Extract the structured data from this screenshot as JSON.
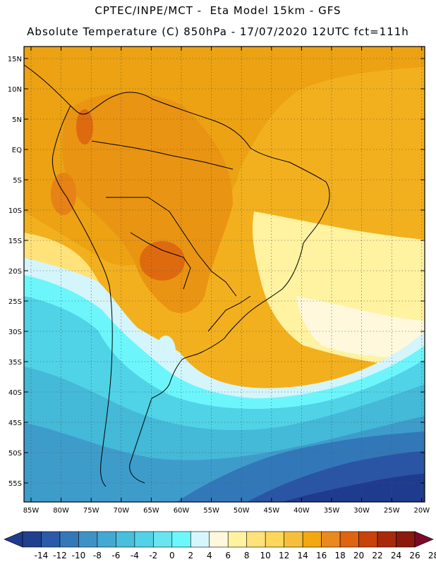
{
  "header": {
    "line1": "CPTEC/INPE/MCT -  Eta Model 15km - GFS",
    "line2": "Absolute Temperature (C) 850hPa - 17/07/2020 12UTC fct=111h"
  },
  "axes": {
    "lat_labels": [
      "15N",
      "10N",
      "5N",
      "EQ",
      "5S",
      "10S",
      "15S",
      "20S",
      "25S",
      "30S",
      "35S",
      "40S",
      "45S",
      "50S",
      "55S"
    ],
    "lon_labels": [
      "85W",
      "80W",
      "75W",
      "70W",
      "65W",
      "60W",
      "55W",
      "50W",
      "45W",
      "40W",
      "35W",
      "30W",
      "25W",
      "20W"
    ]
  },
  "colorbar": {
    "labels": [
      "-14",
      "-12",
      "-10",
      "-8",
      "-6",
      "-4",
      "-2",
      "0",
      "2",
      "4",
      "6",
      "8",
      "10",
      "12",
      "14",
      "16",
      "18",
      "20",
      "22",
      "24",
      "26",
      "28"
    ],
    "colors": [
      "#1f3f8f",
      "#2a5aa8",
      "#3478b8",
      "#3f92c6",
      "#43a9d2",
      "#48bfdb",
      "#52d2e6",
      "#6ae4f0",
      "#6cf8fb",
      "#d7f6fb",
      "#fff8dc",
      "#fff3a0",
      "#ffe27a",
      "#ffd65c",
      "#f5bf3b",
      "#f2a810",
      "#ea8a1e",
      "#de6410",
      "#c9420a",
      "#a82a0a",
      "#8a1a0c"
    ],
    "low_end_color": "#203a8e",
    "high_end_color": "#7a0a28"
  }
}
